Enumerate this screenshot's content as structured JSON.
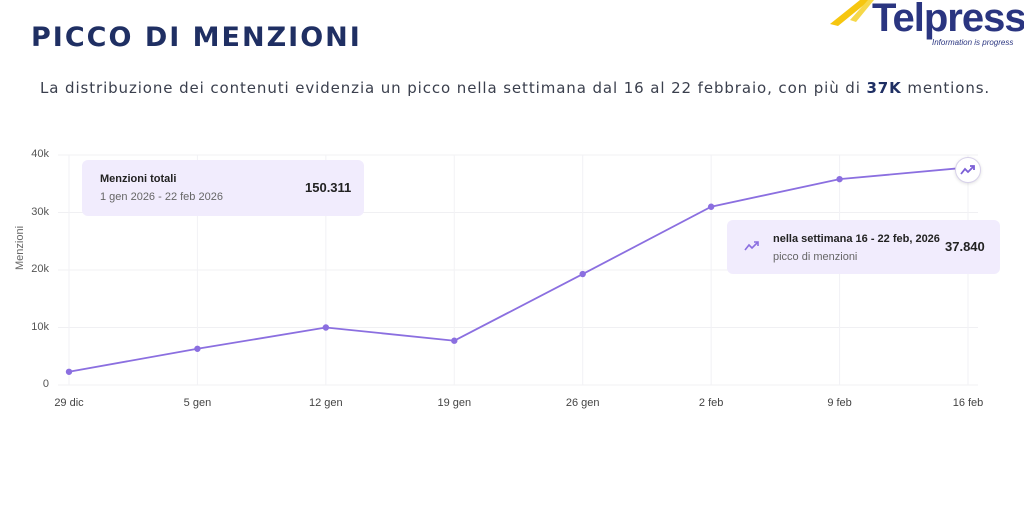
{
  "page": {
    "title": "PICCO DI MENZIONI",
    "subtitle_pre": "La distribuzione dei contenuti evidenzia un picco nella settimana dal 16 al 22 febbraio, con più di ",
    "subtitle_bold": "37K",
    "subtitle_post": " mentions."
  },
  "logo": {
    "name": "Telpress",
    "tagline": "Information is progress"
  },
  "summary_card": {
    "title": "Menzioni totali",
    "range": "1 gen 2026 - 22 feb 2026",
    "value": "150.311"
  },
  "peak_card": {
    "icon": "trending-up-icon",
    "title": "nella settimana 16 - 22 feb, 2026",
    "subtitle": "picco di menzioni",
    "value": "37.840"
  },
  "colors": {
    "line": "#8b6fe0",
    "title": "#1f2f63",
    "card_bg": "#f1ecfd"
  },
  "chart_data": {
    "type": "line",
    "title": "",
    "xlabel": "",
    "ylabel": "Menzioni",
    "categories": [
      "29 dic",
      "5 gen",
      "12 gen",
      "19 gen",
      "26 gen",
      "2 feb",
      "9 feb",
      "16 feb"
    ],
    "values": [
      2300,
      6300,
      10000,
      7700,
      19300,
      31000,
      35800,
      37840
    ],
    "yticks": [
      "0",
      "10k",
      "20k",
      "30k",
      "40k"
    ],
    "ylim": [
      0,
      40000
    ],
    "grid": true,
    "legend": "none"
  }
}
